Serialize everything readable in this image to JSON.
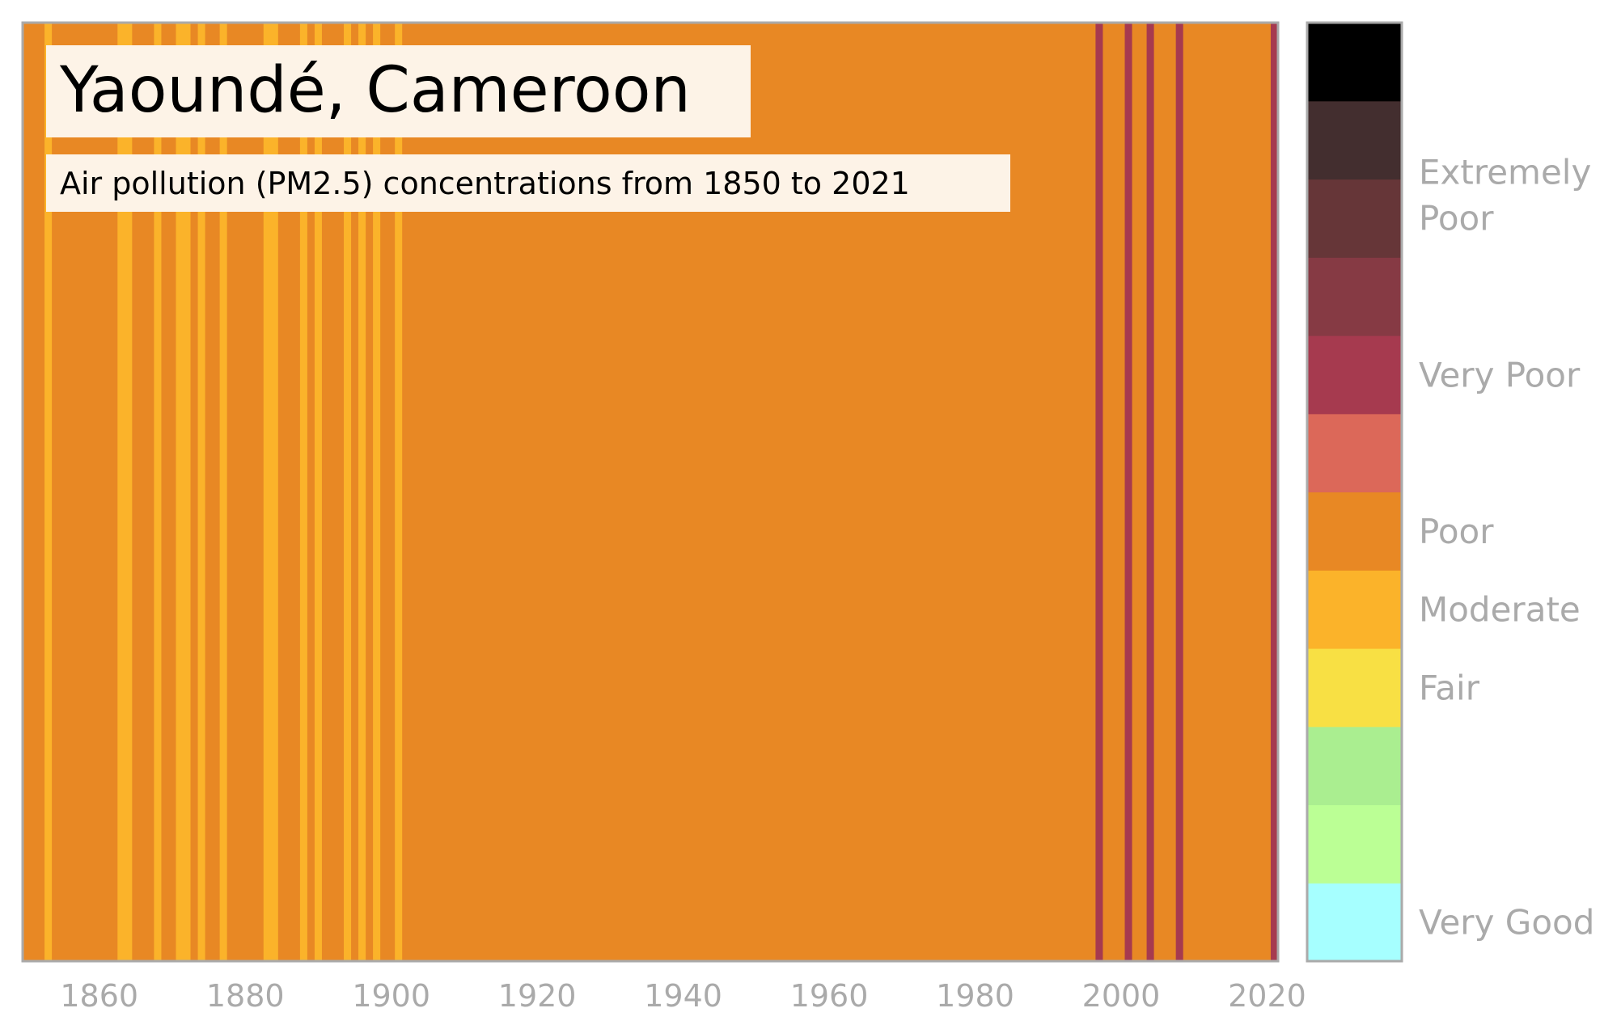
{
  "chart_data": {
    "type": "heatmap",
    "title": "Yaoundé, Cameroon",
    "subtitle": "Air pollution (PM2.5) concentrations from 1850 to 2021",
    "x_range": [
      1850,
      2021
    ],
    "x_ticks": [
      "1860",
      "1880",
      "1900",
      "1920",
      "1940",
      "1960",
      "1980",
      "2000",
      "2020"
    ],
    "grid": false,
    "colorbar": {
      "placement": "right",
      "bins": [
        {
          "index": 0,
          "color": "#a6ffff",
          "label": "Very Good"
        },
        {
          "index": 1,
          "color": "#bbff95",
          "label": ""
        },
        {
          "index": 2,
          "color": "#aaee90",
          "label": ""
        },
        {
          "index": 3,
          "color": "#f8e044",
          "label": "Fair"
        },
        {
          "index": 4,
          "color": "#fbb32a",
          "label": "Moderate"
        },
        {
          "index": 5,
          "color": "#e88824",
          "label": "Poor"
        },
        {
          "index": 6,
          "color": "#dc6859",
          "label": ""
        },
        {
          "index": 7,
          "color": "#a63a4f",
          "label": "Very Poor"
        },
        {
          "index": 8,
          "color": "#863a44",
          "label": ""
        },
        {
          "index": 9,
          "color": "#663638",
          "label": "Extremely Poor"
        },
        {
          "index": 10,
          "color": "#432e2f",
          "label": ""
        },
        {
          "index": 11,
          "color": "#000000",
          "label": ""
        }
      ]
    },
    "default_category": "Poor",
    "exceptions": [
      {
        "year": 1853,
        "category": "Moderate"
      },
      {
        "year": 1863,
        "category": "Moderate"
      },
      {
        "year": 1864,
        "category": "Moderate"
      },
      {
        "year": 1868,
        "category": "Moderate"
      },
      {
        "year": 1871,
        "category": "Moderate"
      },
      {
        "year": 1872,
        "category": "Moderate"
      },
      {
        "year": 1874,
        "category": "Moderate"
      },
      {
        "year": 1877,
        "category": "Moderate"
      },
      {
        "year": 1883,
        "category": "Moderate"
      },
      {
        "year": 1884,
        "category": "Moderate"
      },
      {
        "year": 1888,
        "category": "Moderate"
      },
      {
        "year": 1890,
        "category": "Moderate"
      },
      {
        "year": 1894,
        "category": "Moderate"
      },
      {
        "year": 1896,
        "category": "Moderate"
      },
      {
        "year": 1898,
        "category": "Moderate"
      },
      {
        "year": 1901,
        "category": "Moderate"
      },
      {
        "year": 1997,
        "category": "Very Poor"
      },
      {
        "year": 2001,
        "category": "Very Poor"
      },
      {
        "year": 2004,
        "category": "Very Poor"
      },
      {
        "year": 2008,
        "category": "Very Poor"
      },
      {
        "year": 2021,
        "category": "Very Poor"
      }
    ]
  },
  "colors": {
    "frame": "#aaaaaa",
    "tick_text": "#aaaaaa",
    "title_bg": "#fdf3e7"
  }
}
